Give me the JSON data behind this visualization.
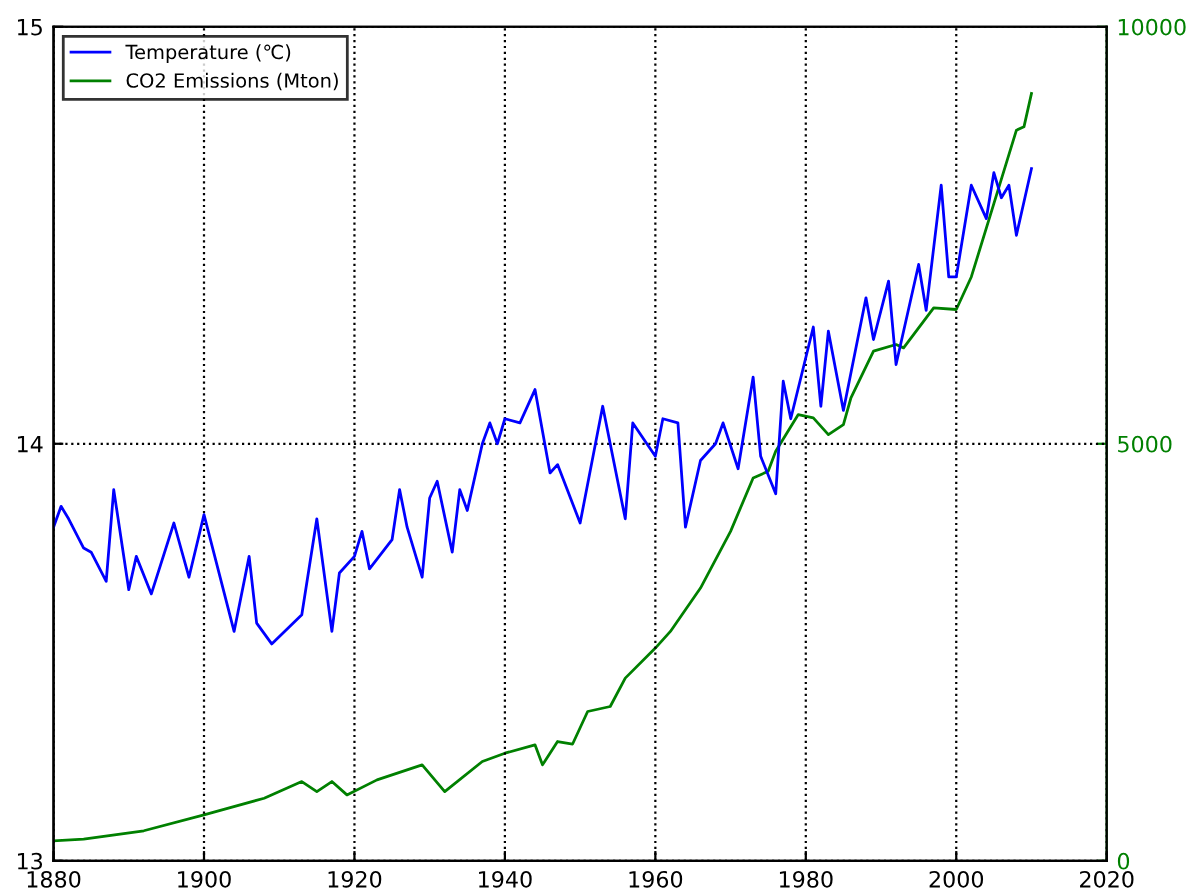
{
  "chart_data": {
    "type": "line",
    "xlim": [
      1880,
      2020
    ],
    "xticks": [
      1880,
      1900,
      1920,
      1940,
      1960,
      1980,
      2000,
      2020
    ],
    "ylim": [
      13,
      15
    ],
    "yticks": [
      13,
      14,
      15
    ],
    "y2lim": [
      0,
      10000
    ],
    "y2ticks": [
      0,
      5000,
      10000
    ],
    "grid": true,
    "legend": "top left",
    "series": [
      {
        "name": "Temperature (℃)",
        "color": "#0000ff",
        "x": [
          1880,
          1881,
          1882,
          1884,
          1885,
          1887,
          1888,
          1890,
          1891,
          1893,
          1896,
          1898,
          1900,
          1904,
          1906,
          1907,
          1909,
          1913,
          1915,
          1917,
          1918,
          1920,
          1921,
          1922,
          1925,
          1926,
          1927,
          1929,
          1930,
          1931,
          1933,
          1934,
          1935,
          1937,
          1938,
          1939,
          1940,
          1942,
          1944,
          1946,
          1947,
          1950,
          1953,
          1956,
          1957,
          1960,
          1961,
          1963,
          1964,
          1966,
          1968,
          1969,
          1971,
          1973,
          1974,
          1976,
          1977,
          1978,
          1981,
          1982,
          1983,
          1985,
          1988,
          1989,
          1991,
          1992,
          1995,
          1996,
          1998,
          1999,
          2000,
          2002,
          2004,
          2005,
          2006,
          2007,
          2008,
          2010
        ],
        "values": [
          13.8,
          13.85,
          13.82,
          13.75,
          13.74,
          13.67,
          13.89,
          13.65,
          13.73,
          13.64,
          13.81,
          13.68,
          13.83,
          13.55,
          13.73,
          13.57,
          13.52,
          13.59,
          13.82,
          13.55,
          13.69,
          13.73,
          13.79,
          13.7,
          13.77,
          13.89,
          13.8,
          13.68,
          13.87,
          13.91,
          13.74,
          13.89,
          13.84,
          14.0,
          14.05,
          14.0,
          14.06,
          14.05,
          14.13,
          13.93,
          13.95,
          13.81,
          14.09,
          13.82,
          14.05,
          13.97,
          14.06,
          14.05,
          13.8,
          13.96,
          14.0,
          14.05,
          13.94,
          14.16,
          13.97,
          13.88,
          14.15,
          14.06,
          14.28,
          14.09,
          14.27,
          14.08,
          14.35,
          14.25,
          14.39,
          14.19,
          14.43,
          14.32,
          14.62,
          14.4,
          14.4,
          14.62,
          14.54,
          14.65,
          14.59,
          14.62,
          14.5,
          14.66
        ]
      },
      {
        "name": "CO2 Emissions (Mton)",
        "color": "#008000",
        "axis": "y2",
        "x": [
          1880,
          1884,
          1892,
          1900,
          1908,
          1913,
          1915,
          1917,
          1919,
          1923,
          1929,
          1932,
          1937,
          1940,
          1944,
          1945,
          1947,
          1949,
          1951,
          1954,
          1956,
          1960,
          1962,
          1966,
          1970,
          1973,
          1975,
          1976,
          1979,
          1981,
          1983,
          1985,
          1986,
          1989,
          1992,
          1993,
          1997,
          2000,
          2002,
          2005,
          2008,
          2009,
          2010
        ],
        "values": [
          240,
          260,
          360,
          550,
          750,
          950,
          830,
          950,
          790,
          970,
          1150,
          830,
          1190,
          1290,
          1390,
          1150,
          1430,
          1400,
          1790,
          1850,
          2190,
          2550,
          2750,
          3270,
          3950,
          4590,
          4670,
          4910,
          5350,
          5310,
          5110,
          5230,
          5550,
          6110,
          6190,
          6150,
          6630,
          6610,
          7000,
          7880,
          8760,
          8800,
          9200
        ]
      }
    ]
  }
}
